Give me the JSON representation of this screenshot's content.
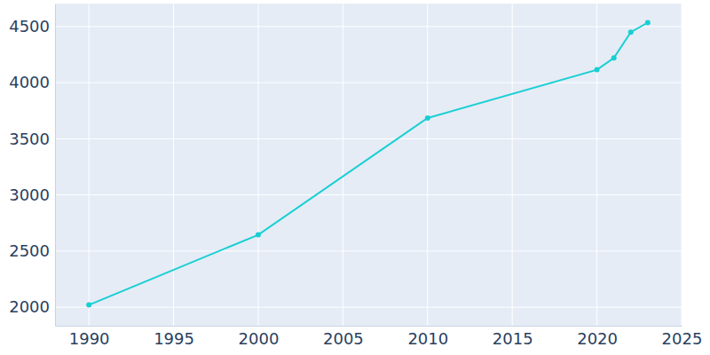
{
  "chart_data": {
    "type": "line",
    "x": [
      1990,
      2000,
      2010,
      2020,
      2021,
      2022,
      2023
    ],
    "series": [
      {
        "color": "#17cfd3",
        "marker": "circle",
        "line_style": "solid",
        "values": [
          2020,
          2645,
          3685,
          4115,
          4220,
          4450,
          4535
        ]
      }
    ],
    "xlim": [
      1988,
      2025
    ],
    "xticks": [
      1990,
      1995,
      2000,
      2005,
      2010,
      2015,
      2020,
      2025
    ],
    "ylim": [
      1835,
      4705
    ],
    "yticks": [
      2000,
      2500,
      3000,
      3500,
      4000,
      4500
    ],
    "grid": true
  }
}
